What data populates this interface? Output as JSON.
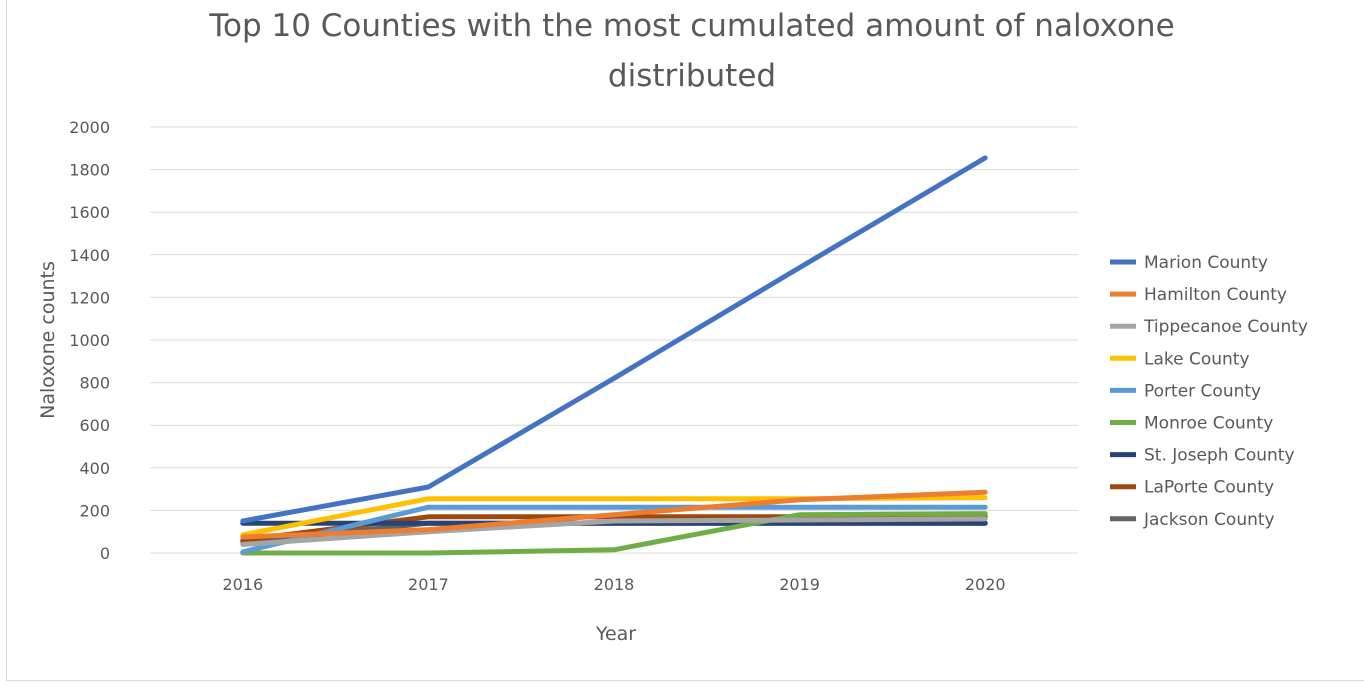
{
  "chart_data": {
    "type": "line",
    "title_lines": [
      "Top 10 Counties with the most cumulated amount of naloxone",
      "distributed"
    ],
    "xlabel": "Year",
    "ylabel": "Naloxone counts",
    "categories": [
      "2016",
      "2017",
      "2018",
      "2019",
      "2020"
    ],
    "y_ticks": [
      "0",
      "200",
      "400",
      "600",
      "800",
      "1000",
      "1200",
      "1400",
      "1600",
      "1800",
      "2000"
    ],
    "ylim": [
      0,
      2000
    ],
    "grid": "horizontal",
    "legend_position": "right",
    "series": [
      {
        "name": "Marion County",
        "color": "#4472C4",
        "values": [
          150,
          310,
          820,
          1340,
          1855
        ]
      },
      {
        "name": "Hamilton County",
        "color": "#ED7D31",
        "values": [
          75,
          110,
          180,
          250,
          285
        ]
      },
      {
        "name": "Tippecanoe County",
        "color": "#A5A5A5",
        "values": [
          40,
          100,
          150,
          155,
          160
        ]
      },
      {
        "name": "Lake County",
        "color": "#FFC000",
        "values": [
          85,
          255,
          255,
          255,
          260
        ]
      },
      {
        "name": "Porter County",
        "color": "#5B9BD5",
        "values": [
          5,
          215,
          215,
          215,
          215
        ]
      },
      {
        "name": "Monroe County",
        "color": "#70AD47",
        "values": [
          0,
          0,
          15,
          180,
          185
        ]
      },
      {
        "name": "St. Joseph County",
        "color": "#264478",
        "values": [
          140,
          140,
          140,
          140,
          140
        ]
      },
      {
        "name": "LaPorte County",
        "color": "#9E480E",
        "values": [
          60,
          170,
          170,
          170,
          170
        ]
      },
      {
        "name": "Jackson County",
        "color": "#636363",
        "values": [
          50,
          140,
          140,
          140,
          140
        ]
      }
    ]
  }
}
